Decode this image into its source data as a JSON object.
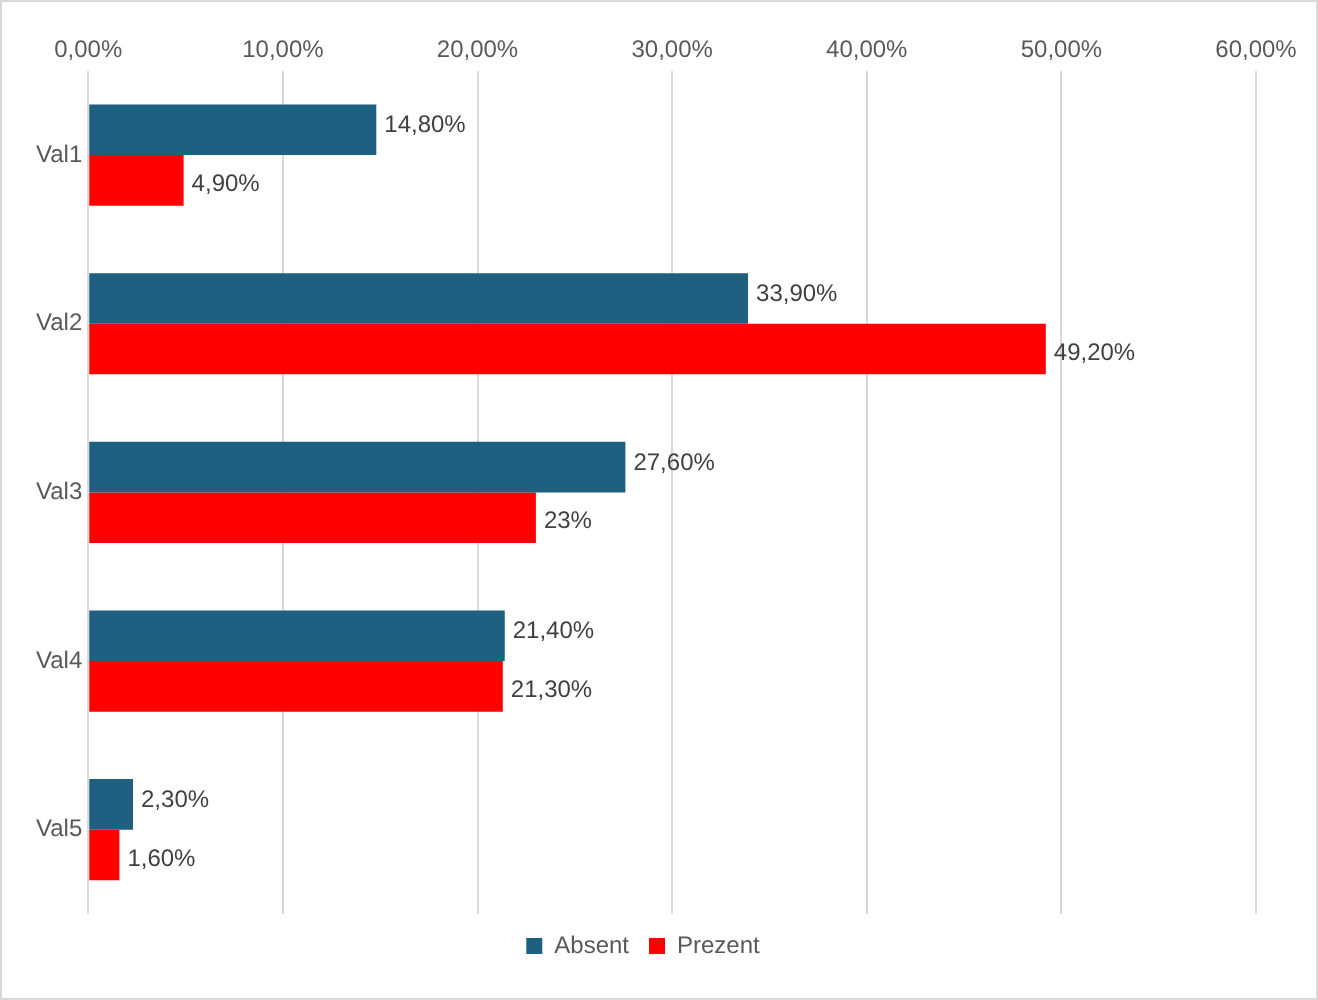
{
  "chart_data": {
    "type": "bar",
    "orientation": "horizontal",
    "categories": [
      "Val1",
      "Val2",
      "Val3",
      "Val4",
      "Val5"
    ],
    "series": [
      {
        "name": "Absent",
        "color": "#1f5f7f",
        "values": [
          14.8,
          33.9,
          27.6,
          21.4,
          2.3
        ],
        "value_labels": [
          "14,80%",
          "33,90%",
          "27,60%",
          "21,40%",
          "2,30%"
        ]
      },
      {
        "name": "Prezent",
        "color": "#ff0000",
        "values": [
          4.9,
          49.2,
          23,
          21.3,
          1.6
        ],
        "value_labels": [
          "4,90%",
          "49,20%",
          "23%",
          "21,30%",
          "1,60%"
        ]
      }
    ],
    "xlim": [
      0,
      60
    ],
    "xticks": [
      {
        "value": 0,
        "label": "0,00%"
      },
      {
        "value": 10,
        "label": "10,00%"
      },
      {
        "value": 20,
        "label": "20,00%"
      },
      {
        "value": 30,
        "label": "30,00%"
      },
      {
        "value": 40,
        "label": "40,00%"
      },
      {
        "value": 50,
        "label": "50,00%"
      },
      {
        "value": 60,
        "label": "60,00%"
      }
    ],
    "grid": "x",
    "legend": "bottom"
  }
}
